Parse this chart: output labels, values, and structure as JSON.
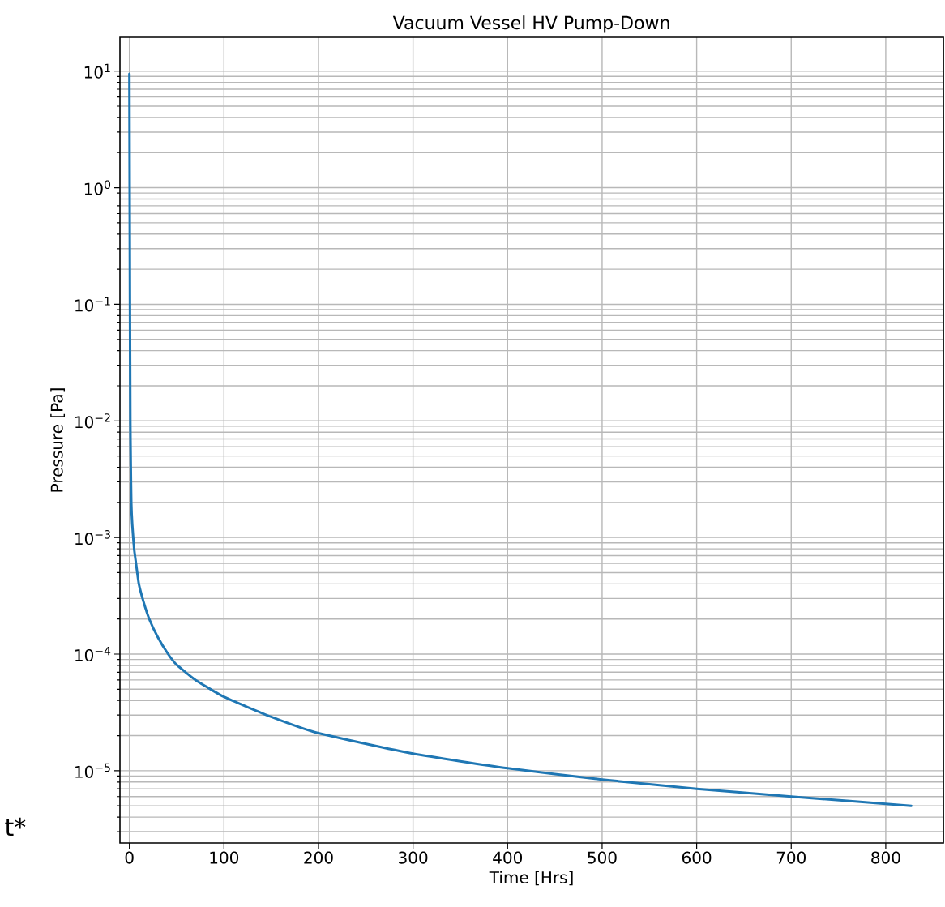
{
  "chart_data": {
    "type": "line",
    "title": "Vacuum Vessel HV Pump-Down",
    "xlabel": "Time [Hrs]",
    "ylabel": "Pressure [Pa]",
    "annotations": [
      "t*"
    ],
    "x": [
      0,
      0.3,
      0.6,
      1,
      1.5,
      2,
      3,
      5,
      7,
      10,
      15,
      21,
      30,
      41,
      50,
      70,
      100,
      150,
      200,
      300,
      400,
      500,
      600,
      700,
      827
    ],
    "series": [
      {
        "color": "#1f77b4",
        "values": [
          9.5,
          1,
          0.1,
          0.01,
          0.004,
          0.002,
          0.0013,
          0.0008,
          0.0006,
          0.0004,
          0.00028,
          0.0002,
          0.00014,
          0.0001,
          8.1e-05,
          6e-05,
          4.3e-05,
          2.9e-05,
          2.1e-05,
          1.4e-05,
          1.05e-05,
          8.4e-06,
          7e-06,
          6e-06,
          5e-06
        ]
      }
    ],
    "log": "y",
    "grid": true,
    "marker": "none",
    "line_style": "solid",
    "xlim": [
      -10,
      861
    ],
    "ylim": [
      2.4e-06,
      19.5
    ],
    "xticks": [
      0,
      100,
      200,
      300,
      400,
      500,
      600,
      700,
      800
    ],
    "yticks": [
      {
        "value": 10,
        "label": "10$^{1}$"
      },
      {
        "value": 1,
        "label": "10$^{0}$"
      },
      {
        "value": 0.1,
        "label": "10$^{−1}$"
      },
      {
        "value": 0.01,
        "label": "10$^{−2}$"
      },
      {
        "value": 0.001,
        "label": "10$^{−3}$"
      },
      {
        "value": 0.0001,
        "label": "10$^{−4}$"
      },
      {
        "value": 1e-05,
        "label": "10$^{−5}$"
      }
    ]
  }
}
